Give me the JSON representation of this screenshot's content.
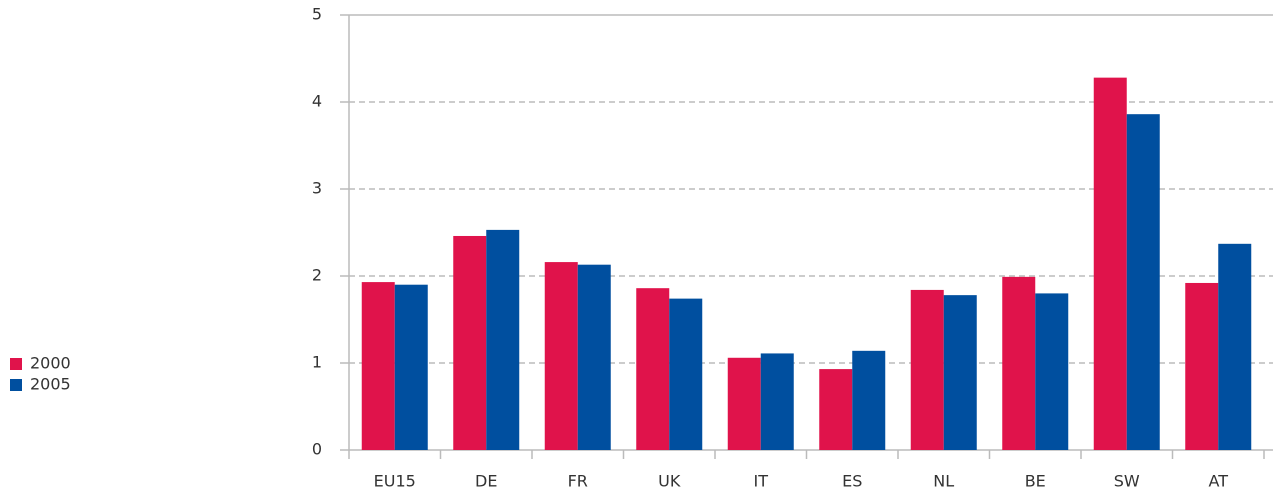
{
  "chart_data": {
    "type": "bar",
    "categories": [
      "EU15",
      "DE",
      "FR",
      "UK",
      "IT",
      "ES",
      "NL",
      "BE",
      "SW",
      "AT"
    ],
    "series": [
      {
        "name": "2000",
        "color": "#e0134b",
        "values": [
          1.93,
          2.46,
          2.16,
          1.86,
          1.06,
          0.93,
          1.84,
          1.99,
          4.28,
          1.92
        ]
      },
      {
        "name": "2005",
        "color": "#004f9f",
        "values": [
          1.9,
          2.53,
          2.13,
          1.74,
          1.11,
          1.14,
          1.78,
          1.8,
          3.86,
          2.37
        ]
      }
    ],
    "ylim": [
      0,
      5
    ],
    "yticks": [
      0,
      1,
      2,
      3,
      4,
      5
    ],
    "grid": true,
    "legend": "left"
  }
}
